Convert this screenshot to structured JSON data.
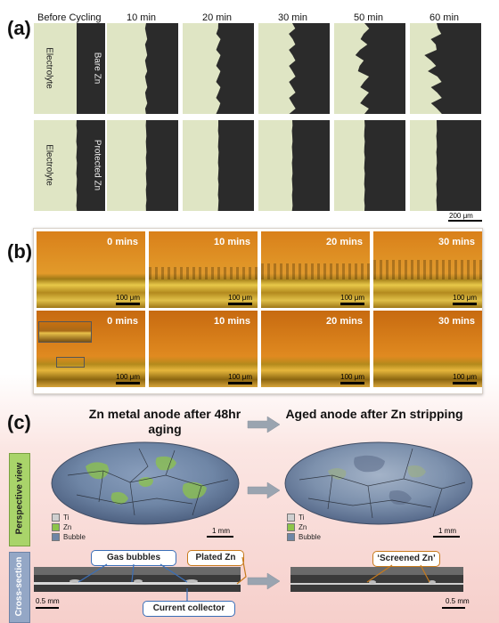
{
  "panel_a": {
    "label": "(a)",
    "columns": [
      "Before Cycling",
      "10 min",
      "20 min",
      "30 min",
      "50 min",
      "60 min"
    ],
    "rows": [
      {
        "electrolyte_label": "Electrolyte",
        "electrode_label": "Bare Zn"
      },
      {
        "electrolyte_label": "Electrolyte",
        "electrode_label": "Protected Zn"
      }
    ],
    "scale_bar": "200 μm",
    "colors": {
      "electrolyte": "#dfe5c4",
      "electrode": "#2b2b2b"
    }
  },
  "panel_b": {
    "label": "(b)",
    "rows": [
      {
        "times": [
          "0 mins",
          "10 mins",
          "20 mins",
          "30 mins"
        ]
      },
      {
        "times": [
          "0 mins",
          "10 mins",
          "20 mins",
          "30 mins"
        ]
      }
    ],
    "scale_bar": "100 μm",
    "colors": {
      "electrolyte": "#e0901e",
      "deposit": "#c9a426"
    }
  },
  "panel_c": {
    "label": "(c)",
    "left_title": "Zn metal anode after 48hr aging",
    "right_title": "Aged anode after Zn stripping",
    "side_labels": [
      "Perspective view",
      "Cross-section"
    ],
    "legend": [
      {
        "label": "Ti",
        "color": "#cfcfcf"
      },
      {
        "label": "Zn",
        "color": "#8dc44a"
      },
      {
        "label": "Bubble",
        "color": "#6f86a6"
      }
    ],
    "scale_bar_top": "1 mm",
    "scale_bar_bottom": "0.5 mm",
    "callouts": {
      "gas_bubbles": "Gas bubbles",
      "plated_zn": "Plated Zn",
      "current_collector": "Current collector",
      "screened_zn": "‘Screened Zn’"
    }
  }
}
